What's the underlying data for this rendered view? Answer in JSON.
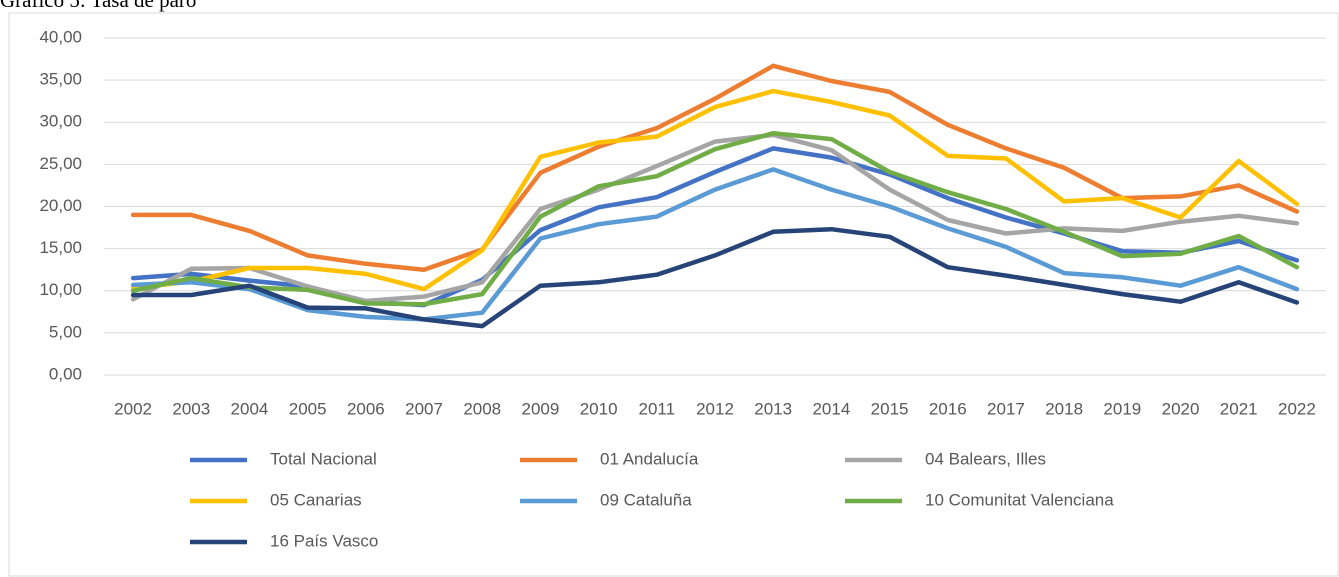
{
  "chart_data": {
    "type": "line",
    "title": "Gráfico 5: Tasa de paro",
    "categories": [
      "2002",
      "2003",
      "2004",
      "2005",
      "2006",
      "2007",
      "2008",
      "2009",
      "2010",
      "2011",
      "2012",
      "2013",
      "2014",
      "2015",
      "2016",
      "2017",
      "2018",
      "2019",
      "2020",
      "2021",
      "2022"
    ],
    "ylim": [
      0,
      40
    ],
    "yticks": [
      {
        "value": 0,
        "label": "0,00"
      },
      {
        "value": 5,
        "label": "5,00"
      },
      {
        "value": 10,
        "label": "10,00"
      },
      {
        "value": 15,
        "label": "15,00"
      },
      {
        "value": 20,
        "label": "20,00"
      },
      {
        "value": 25,
        "label": "25,00"
      },
      {
        "value": 30,
        "label": "30,00"
      },
      {
        "value": 35,
        "label": "35,00"
      },
      {
        "value": 40,
        "label": "40,00"
      }
    ],
    "grid": true,
    "legend": "bottom",
    "series": [
      {
        "name": "Total Nacional",
        "color": "#4472c4",
        "values": [
          11.5,
          12.0,
          11.2,
          10.5,
          8.7,
          8.3,
          11.3,
          17.2,
          19.9,
          21.1,
          24.1,
          26.9,
          25.8,
          23.8,
          21.0,
          18.7,
          16.8,
          14.7,
          14.5,
          15.9,
          13.6
        ]
      },
      {
        "name": "01 Andalucía",
        "color": "#ed7d31",
        "values": [
          19.0,
          19.0,
          17.1,
          14.2,
          13.2,
          12.5,
          14.9,
          24.0,
          27.1,
          29.3,
          32.8,
          36.7,
          34.9,
          33.6,
          29.7,
          26.9,
          24.6,
          21.0,
          21.2,
          22.5,
          19.4
        ]
      },
      {
        "name": "04 Balears, Illes",
        "color": "#a5a5a5",
        "values": [
          9.0,
          12.6,
          12.7,
          10.5,
          8.8,
          9.3,
          11.0,
          19.7,
          22.0,
          24.8,
          27.7,
          28.5,
          26.7,
          22.0,
          18.4,
          16.8,
          17.4,
          17.1,
          18.2,
          18.9,
          18.0
        ]
      },
      {
        "name": "05 Canarias",
        "color": "#ffc000",
        "values": [
          10.3,
          11.1,
          12.7,
          12.7,
          12.0,
          10.2,
          14.8,
          25.9,
          27.6,
          28.3,
          31.8,
          33.7,
          32.4,
          30.8,
          26.0,
          25.7,
          20.6,
          21.0,
          18.7,
          25.4,
          20.3
        ]
      },
      {
        "name": "09 Cataluña",
        "color": "#5b9bd5",
        "values": [
          10.7,
          11.0,
          10.2,
          7.7,
          6.9,
          6.6,
          7.4,
          16.2,
          17.9,
          18.8,
          22.0,
          24.4,
          22.0,
          20.0,
          17.4,
          15.2,
          12.1,
          11.6,
          10.6,
          12.8,
          10.2
        ]
      },
      {
        "name": "10 Comunitat Valenciana",
        "color": "#70ad47",
        "values": [
          10.0,
          11.5,
          10.4,
          10.1,
          8.5,
          8.4,
          9.6,
          18.8,
          22.4,
          23.6,
          26.8,
          28.7,
          28.0,
          24.1,
          21.7,
          19.7,
          17.0,
          14.1,
          14.4,
          16.5,
          12.8
        ]
      },
      {
        "name": "16 País Vasco",
        "color": "#264478",
        "values": [
          9.5,
          9.5,
          10.6,
          8.0,
          7.9,
          6.6,
          5.8,
          10.6,
          11.0,
          11.9,
          14.2,
          17.0,
          17.3,
          16.4,
          12.8,
          11.8,
          10.7,
          9.6,
          8.7,
          11.0,
          8.6
        ]
      }
    ]
  }
}
